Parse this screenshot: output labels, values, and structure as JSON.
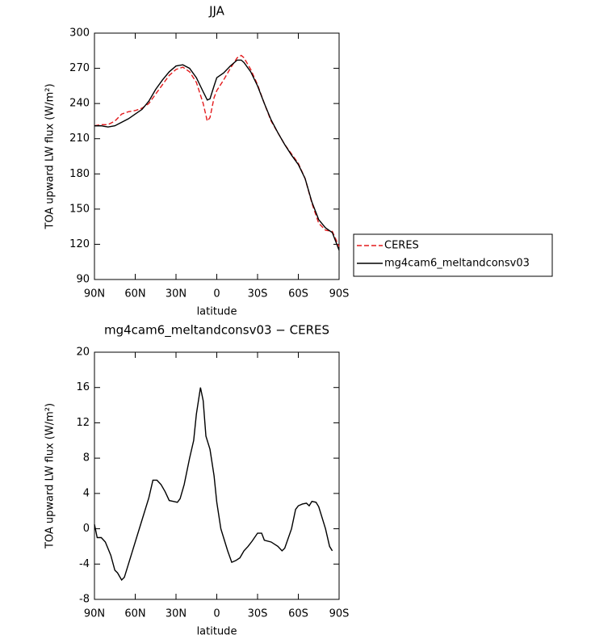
{
  "chart_data": [
    {
      "type": "line",
      "title": "JJA",
      "xlabel": "latitude",
      "ylabel": "TOA upward LW flux (W/m²)",
      "x": [
        90,
        85,
        80,
        75,
        70,
        65,
        60,
        55,
        50,
        45,
        40,
        35,
        30,
        25,
        20,
        15,
        10,
        7,
        5,
        2,
        0,
        -5,
        -10,
        -15,
        -18,
        -20,
        -25,
        -30,
        -35,
        -40,
        -45,
        -50,
        -55,
        -60,
        -65,
        -70,
        -75,
        -80,
        -85,
        -90
      ],
      "series": [
        {
          "name": "CERES",
          "color": "#e31a1c",
          "dash": true,
          "values": [
            221,
            222,
            222,
            225,
            231,
            233,
            234,
            236,
            240,
            248,
            256,
            264,
            269,
            271,
            267,
            258,
            240,
            225,
            228,
            245,
            251,
            260,
            270,
            279,
            281,
            279,
            269,
            256,
            240,
            225,
            215,
            205,
            197,
            189,
            176,
            155,
            138,
            132,
            131,
            118
          ]
        },
        {
          "name": "mg4cam6_meltandconsv03",
          "color": "#000000",
          "dash": false,
          "values": [
            221,
            221,
            220,
            221,
            224,
            227,
            231,
            235,
            242,
            252,
            260,
            267,
            272,
            273,
            270,
            262,
            250,
            243,
            244,
            255,
            262,
            266,
            272,
            277,
            277,
            275,
            267,
            255,
            240,
            226,
            215,
            205,
            196,
            188,
            176,
            156,
            141,
            134,
            130,
            115
          ]
        }
      ],
      "xlim": [
        90,
        -90
      ],
      "xticks": [
        {
          "value": 90,
          "label": "90N"
        },
        {
          "value": 60,
          "label": "60N"
        },
        {
          "value": 30,
          "label": "30N"
        },
        0,
        {
          "value": -30,
          "label": "30S"
        },
        {
          "value": -60,
          "label": "60S"
        },
        {
          "value": -90,
          "label": "90S"
        }
      ],
      "ylim": [
        90,
        300
      ],
      "yticks": [
        90,
        120,
        150,
        180,
        210,
        240,
        270,
        300
      ],
      "legend": "right"
    },
    {
      "type": "line",
      "title": "mg4cam6_meltandconsv03 − CERES",
      "xlabel": "latitude",
      "ylabel": "TOA upward LW flux (W/m²)",
      "x": [
        90,
        88,
        85,
        82,
        78,
        75,
        73,
        70,
        68,
        65,
        60,
        55,
        50,
        47,
        44,
        41,
        38,
        35,
        32,
        29,
        27,
        24,
        20,
        17,
        15,
        12,
        10,
        8,
        5,
        2,
        0,
        -3,
        -5,
        -8,
        -11,
        -14,
        -17,
        -20,
        -23,
        -26,
        -30,
        -33,
        -35,
        -40,
        -45,
        -48,
        -50,
        -55,
        -58,
        -60,
        -63,
        -66,
        -68,
        -70,
        -73,
        -75,
        -80,
        -83,
        -85
      ],
      "series": [
        {
          "color": "#000000",
          "dash": false,
          "values": [
            0.5,
            -1,
            -1,
            -1.5,
            -3,
            -4.7,
            -5,
            -5.8,
            -5.5,
            -4,
            -1.5,
            1,
            3.5,
            5.5,
            5.5,
            5,
            4.2,
            3.2,
            3.1,
            3,
            3.4,
            5,
            8,
            10,
            13,
            16,
            14.5,
            10.5,
            9,
            6,
            3,
            0,
            -1,
            -2.5,
            -3.8,
            -3.6,
            -3.3,
            -2.5,
            -2,
            -1.4,
            -0.5,
            -0.5,
            -1.3,
            -1.5,
            -2,
            -2.5,
            -2.2,
            0,
            2.2,
            2.6,
            2.8,
            2.9,
            2.6,
            3.1,
            3,
            2.5,
            0,
            -2,
            -2.5
          ]
        }
      ],
      "xlim": [
        90,
        -90
      ],
      "xticks": [
        {
          "value": 90,
          "label": "90N"
        },
        {
          "value": 60,
          "label": "60N"
        },
        {
          "value": 30,
          "label": "30N"
        },
        0,
        {
          "value": -30,
          "label": "30S"
        },
        {
          "value": -60,
          "label": "60S"
        },
        {
          "value": -90,
          "label": "90S"
        }
      ],
      "ylim": [
        -8,
        20
      ],
      "yticks": [
        -8,
        -4,
        0,
        4,
        8,
        12,
        16,
        20
      ]
    }
  ]
}
